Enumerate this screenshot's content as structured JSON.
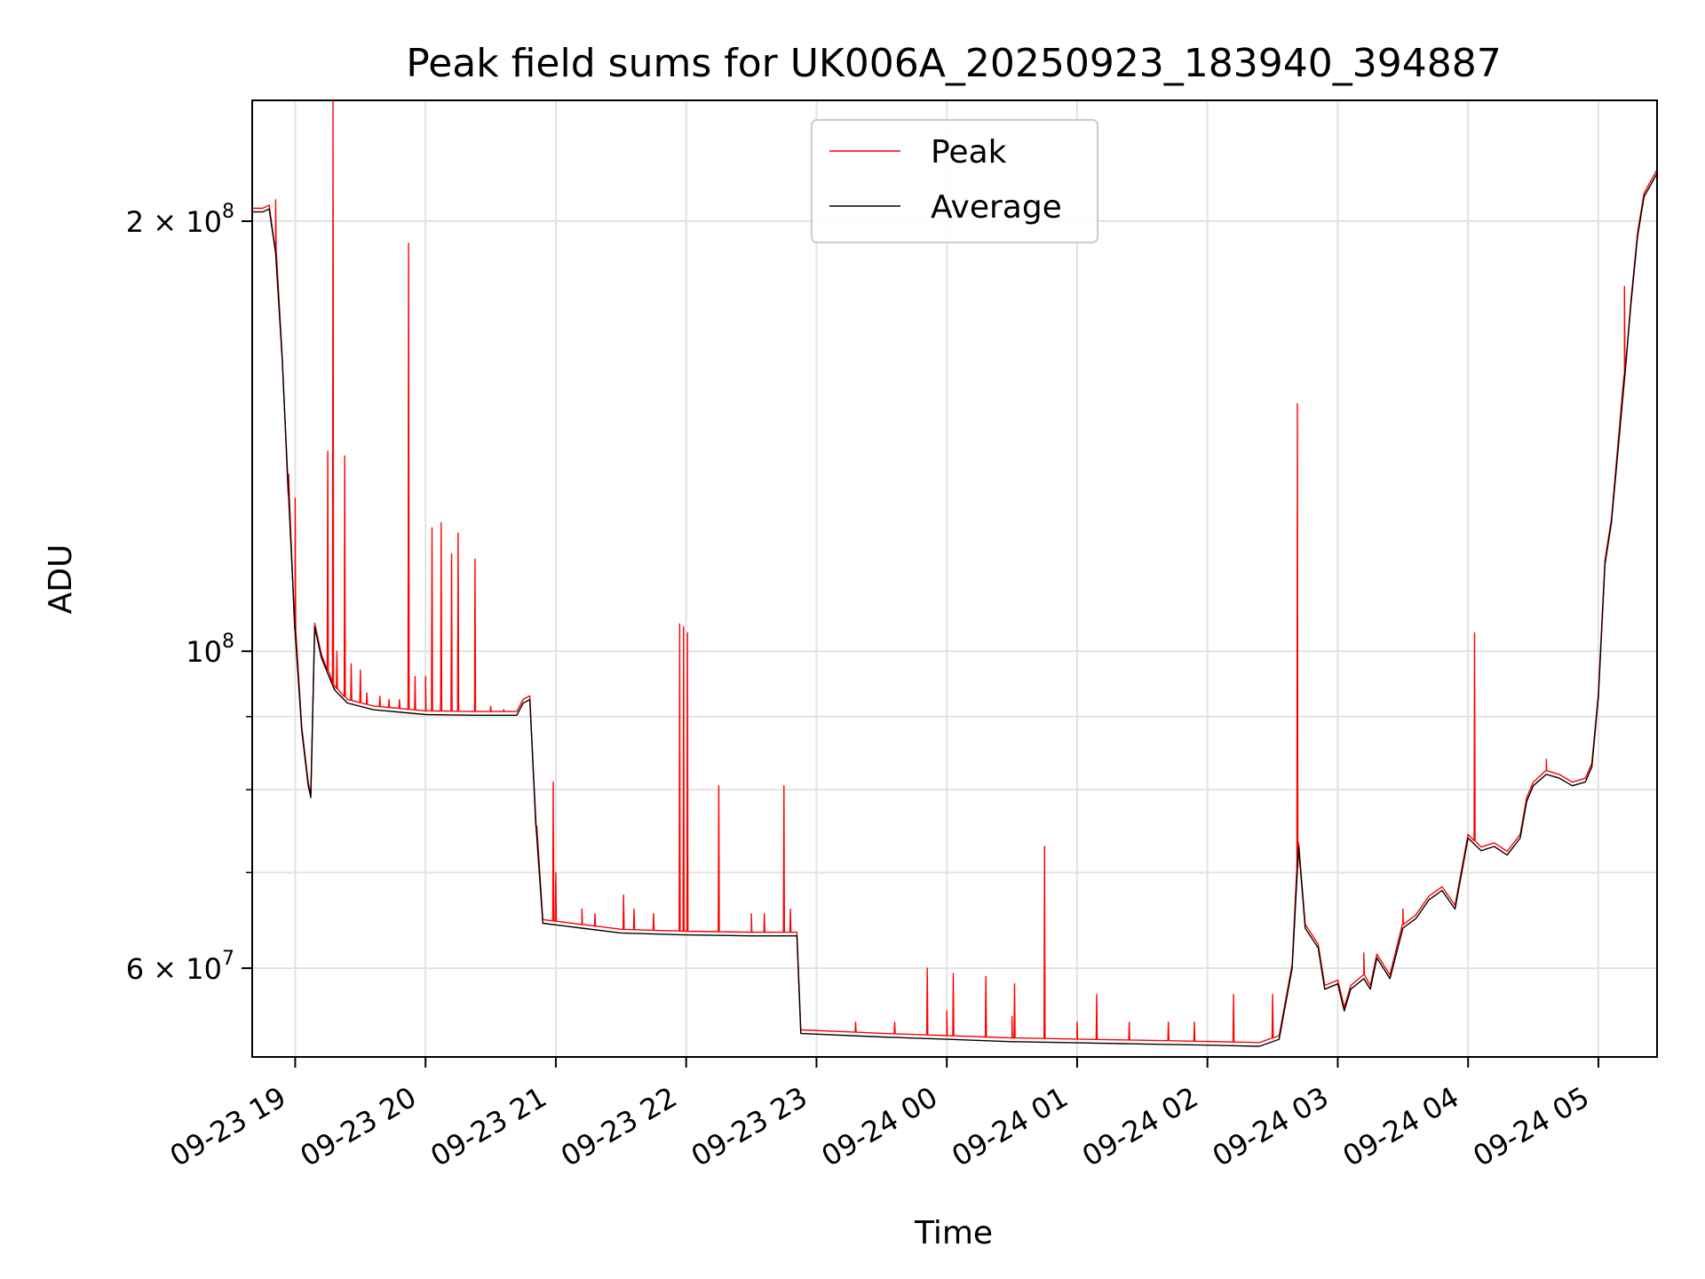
{
  "chart_data": {
    "type": "line",
    "title": "Peak field sums for UK006A_20250923_183940_394887",
    "xlabel": "Time",
    "ylabel": "ADU",
    "x_unit": "hours since 09-23 00:00",
    "xlim": [
      18.67,
      29.45
    ],
    "ylim": [
      52000000,
      243000000
    ],
    "yscale": "log",
    "grid": true,
    "legend_position": "upper-center",
    "x_ticks": [
      {
        "v": 19,
        "label": "09-23 19"
      },
      {
        "v": 20,
        "label": "09-23 20"
      },
      {
        "v": 21,
        "label": "09-23 21"
      },
      {
        "v": 22,
        "label": "09-23 22"
      },
      {
        "v": 23,
        "label": "09-23 23"
      },
      {
        "v": 24,
        "label": "09-24 00"
      },
      {
        "v": 25,
        "label": "09-24 01"
      },
      {
        "v": 26,
        "label": "09-24 02"
      },
      {
        "v": 27,
        "label": "09-24 03"
      },
      {
        "v": 28,
        "label": "09-24 04"
      },
      {
        "v": 29,
        "label": "09-24 05"
      }
    ],
    "y_major_ticks": [
      {
        "v": 60000000,
        "base": "6 × 10",
        "exp": "7"
      },
      {
        "v": 100000000,
        "base": "10",
        "exp": "8"
      },
      {
        "v": 200000000,
        "base": "2 × 10",
        "exp": "8"
      }
    ],
    "y_minor_ticks": [
      70000000,
      80000000,
      90000000
    ],
    "series": [
      {
        "name": "Average",
        "color": "#000000",
        "points": [
          [
            18.67,
            203000000
          ],
          [
            18.75,
            203000000
          ],
          [
            18.8,
            204000000
          ],
          [
            18.85,
            190000000
          ],
          [
            18.9,
            160000000
          ],
          [
            18.95,
            128000000
          ],
          [
            19.0,
            103000000
          ],
          [
            19.05,
            88000000
          ],
          [
            19.1,
            80500000
          ],
          [
            19.12,
            79000000
          ],
          [
            19.15,
            104000000
          ],
          [
            19.2,
            99000000
          ],
          [
            19.3,
            94000000
          ],
          [
            19.4,
            92000000
          ],
          [
            19.6,
            91000000
          ],
          [
            20.0,
            90300000
          ],
          [
            20.4,
            90200000
          ],
          [
            20.7,
            90200000
          ],
          [
            20.75,
            92000000
          ],
          [
            20.8,
            92500000
          ],
          [
            20.85,
            75000000
          ],
          [
            20.9,
            64500000
          ],
          [
            21.2,
            64000000
          ],
          [
            21.5,
            63500000
          ],
          [
            22.0,
            63300000
          ],
          [
            22.5,
            63200000
          ],
          [
            22.85,
            63200000
          ],
          [
            22.88,
            54000000
          ],
          [
            23.5,
            53700000
          ],
          [
            24.0,
            53500000
          ],
          [
            24.5,
            53300000
          ],
          [
            25.0,
            53200000
          ],
          [
            25.5,
            53100000
          ],
          [
            26.0,
            53000000
          ],
          [
            26.4,
            52900000
          ],
          [
            26.55,
            53500000
          ],
          [
            26.65,
            60000000
          ],
          [
            26.7,
            73000000
          ],
          [
            26.75,
            64000000
          ],
          [
            26.85,
            62000000
          ],
          [
            26.9,
            58000000
          ],
          [
            27.0,
            58500000
          ],
          [
            27.05,
            56000000
          ],
          [
            27.1,
            58000000
          ],
          [
            27.2,
            59000000
          ],
          [
            27.25,
            58000000
          ],
          [
            27.3,
            61000000
          ],
          [
            27.4,
            59000000
          ],
          [
            27.5,
            64000000
          ],
          [
            27.6,
            65000000
          ],
          [
            27.7,
            67000000
          ],
          [
            27.8,
            68000000
          ],
          [
            27.9,
            66000000
          ],
          [
            28.0,
            74000000
          ],
          [
            28.1,
            72500000
          ],
          [
            28.2,
            73000000
          ],
          [
            28.3,
            72000000
          ],
          [
            28.4,
            74000000
          ],
          [
            28.45,
            78500000
          ],
          [
            28.5,
            80500000
          ],
          [
            28.6,
            82000000
          ],
          [
            28.7,
            81500000
          ],
          [
            28.8,
            80500000
          ],
          [
            28.9,
            81000000
          ],
          [
            28.95,
            83000000
          ],
          [
            29.0,
            93000000
          ],
          [
            29.05,
            115000000
          ],
          [
            29.1,
            123000000
          ],
          [
            29.2,
            155000000
          ],
          [
            29.25,
            175000000
          ],
          [
            29.3,
            195000000
          ],
          [
            29.35,
            208000000
          ],
          [
            29.45,
            216000000
          ]
        ]
      },
      {
        "name": "Peak",
        "color": "#ff0000",
        "spikes": [
          [
            18.85,
            207000000
          ],
          [
            18.95,
            133000000
          ],
          [
            19.0,
            128000000
          ],
          [
            19.25,
            138000000
          ],
          [
            19.29,
            246000000
          ],
          [
            19.32,
            100000000
          ],
          [
            19.38,
            137000000
          ],
          [
            19.43,
            98000000
          ],
          [
            19.5,
            97000000
          ],
          [
            19.55,
            93500000
          ],
          [
            19.65,
            93000000
          ],
          [
            19.72,
            92500000
          ],
          [
            19.8,
            92500000
          ],
          [
            19.87,
            193000000
          ],
          [
            19.92,
            96000000
          ],
          [
            20.0,
            96000000
          ],
          [
            20.05,
            122000000
          ],
          [
            20.12,
            123000000
          ],
          [
            20.2,
            117000000
          ],
          [
            20.25,
            121000000
          ],
          [
            20.38,
            116000000
          ],
          [
            20.5,
            91500000
          ],
          [
            20.6,
            91000000
          ],
          [
            20.85,
            75000000
          ],
          [
            20.98,
            81000000
          ],
          [
            21.0,
            70000000
          ],
          [
            21.2,
            66000000
          ],
          [
            21.3,
            65500000
          ],
          [
            21.52,
            67500000
          ],
          [
            21.6,
            66000000
          ],
          [
            21.75,
            65500000
          ],
          [
            21.95,
            104500000
          ],
          [
            21.98,
            104000000
          ],
          [
            22.01,
            103000000
          ],
          [
            22.25,
            80500000
          ],
          [
            22.5,
            65500000
          ],
          [
            22.6,
            65500000
          ],
          [
            22.75,
            80500000
          ],
          [
            22.8,
            66000000
          ],
          [
            23.3,
            55000000
          ],
          [
            23.6,
            55000000
          ],
          [
            23.85,
            60000000
          ],
          [
            24.0,
            56000000
          ],
          [
            24.05,
            59500000
          ],
          [
            24.3,
            59200000
          ],
          [
            24.5,
            55500000
          ],
          [
            24.52,
            58500000
          ],
          [
            24.75,
            73000000
          ],
          [
            25.0,
            55000000
          ],
          [
            25.15,
            57500000
          ],
          [
            25.4,
            55000000
          ],
          [
            25.7,
            55000000
          ],
          [
            25.9,
            55000000
          ],
          [
            26.2,
            57500000
          ],
          [
            26.5,
            57500000
          ],
          [
            26.69,
            149000000
          ],
          [
            27.2,
            61500000
          ],
          [
            27.5,
            66000000
          ],
          [
            28.05,
            103000000
          ],
          [
            28.6,
            84000000
          ],
          [
            29.2,
            180000000
          ]
        ]
      }
    ]
  }
}
